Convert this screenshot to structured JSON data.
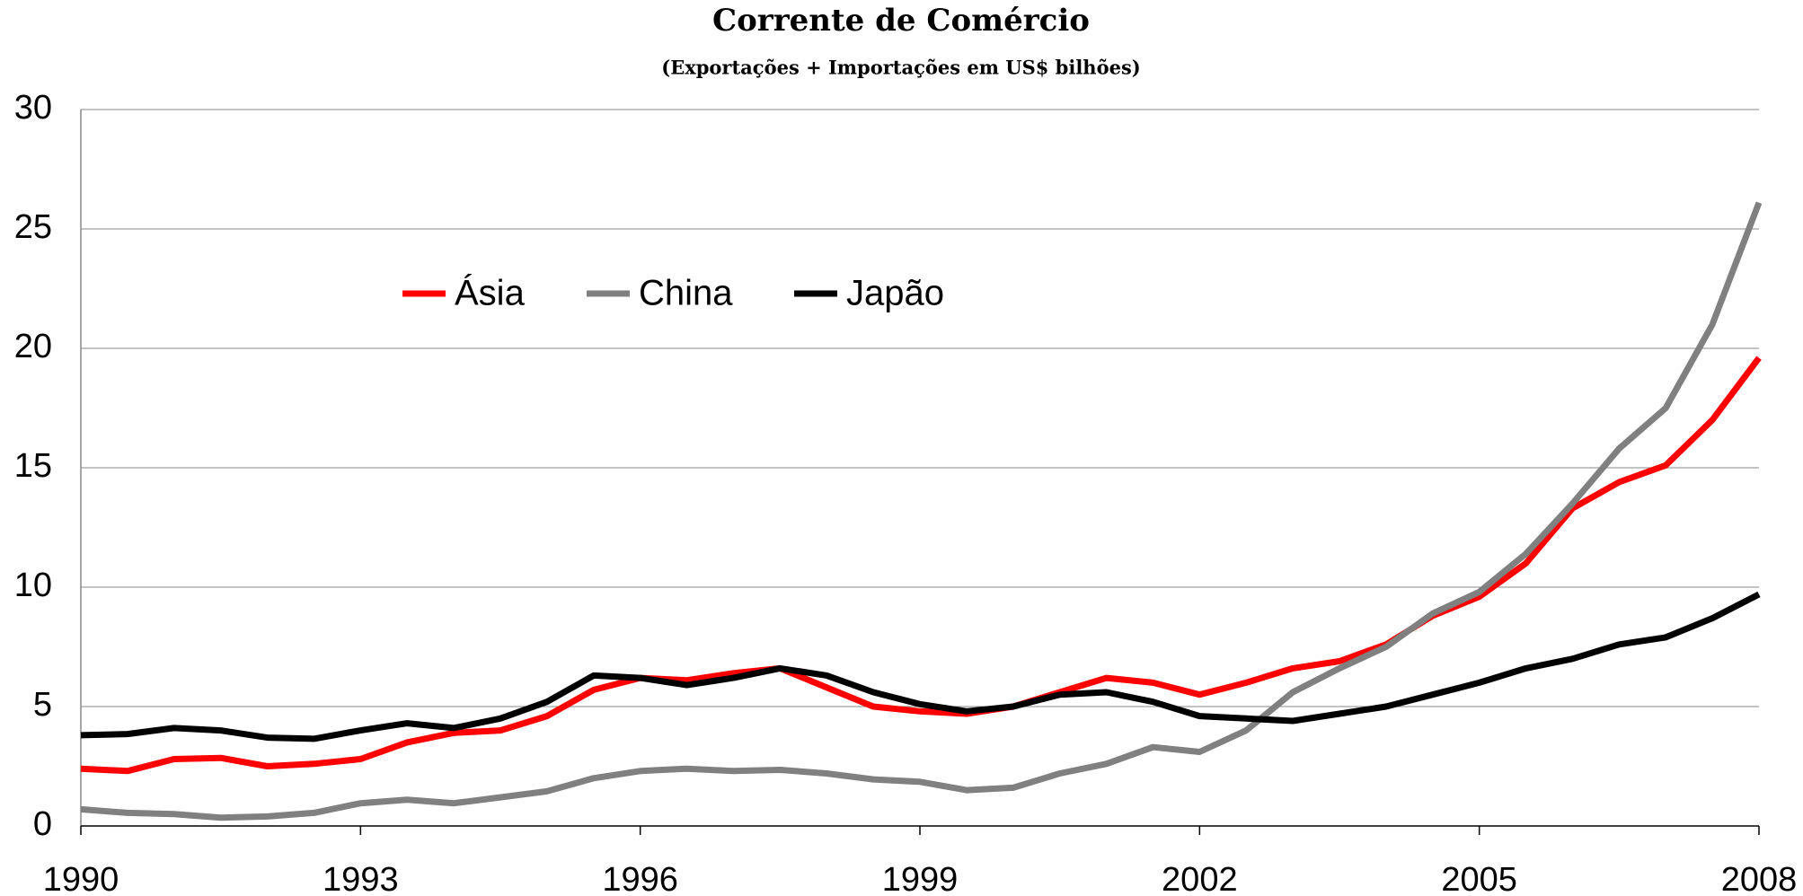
{
  "chart_data": {
    "type": "line",
    "title": "Corrente de Comércio",
    "subtitle": "(Exportações + Importações em US$ bilhões)",
    "x": [
      1990,
      1990.5,
      1991,
      1991.5,
      1992,
      1992.5,
      1993,
      1993.5,
      1994,
      1994.5,
      1995,
      1995.5,
      1996,
      1996.5,
      1997,
      1997.5,
      1998,
      1998.5,
      1999,
      1999.5,
      2000,
      2000.5,
      2001,
      2001.5,
      2002,
      2002.5,
      2003,
      2003.5,
      2004,
      2004.5,
      2005,
      2005.5,
      2006,
      2006.5,
      2007,
      2007.5,
      2008
    ],
    "series": [
      {
        "name": "Ásia",
        "color": "#ff0000",
        "values": [
          2.4,
          2.3,
          2.8,
          2.85,
          2.5,
          2.6,
          2.8,
          3.5,
          3.9,
          4.0,
          4.6,
          5.7,
          6.2,
          6.1,
          6.4,
          6.6,
          5.8,
          5.0,
          4.8,
          4.7,
          5.0,
          5.6,
          6.2,
          6.0,
          5.5,
          6.0,
          6.6,
          6.9,
          7.6,
          8.8,
          9.6,
          11.0,
          13.3,
          14.4,
          15.1,
          17.0,
          19.6
        ]
      },
      {
        "name": "China",
        "color": "#808080",
        "values": [
          0.7,
          0.55,
          0.5,
          0.35,
          0.4,
          0.55,
          0.95,
          1.1,
          0.95,
          1.2,
          1.45,
          2.0,
          2.3,
          2.4,
          2.3,
          2.35,
          2.2,
          1.95,
          1.85,
          1.5,
          1.6,
          2.2,
          2.6,
          3.3,
          3.1,
          4.0,
          5.6,
          6.6,
          7.5,
          8.9,
          9.8,
          11.4,
          13.5,
          15.8,
          17.5,
          21.0,
          26.1
        ]
      },
      {
        "name": "Japão",
        "color": "#000000",
        "values": [
          3.8,
          3.85,
          4.1,
          4.0,
          3.7,
          3.65,
          4.0,
          4.3,
          4.1,
          4.5,
          5.2,
          6.3,
          6.2,
          5.9,
          6.2,
          6.6,
          6.3,
          5.6,
          5.1,
          4.8,
          5.0,
          5.5,
          5.6,
          5.2,
          4.6,
          4.5,
          4.4,
          4.7,
          5.0,
          5.5,
          6.0,
          6.6,
          7.0,
          7.6,
          7.9,
          8.7,
          9.7
        ]
      }
    ],
    "xlim": [
      1990,
      2008
    ],
    "xticks": [
      1990,
      1993,
      1996,
      1999,
      2002,
      2005,
      2008
    ],
    "ylim": [
      0,
      30
    ],
    "yticks": [
      0,
      5,
      10,
      15,
      20,
      25,
      30
    ],
    "grid": true
  }
}
